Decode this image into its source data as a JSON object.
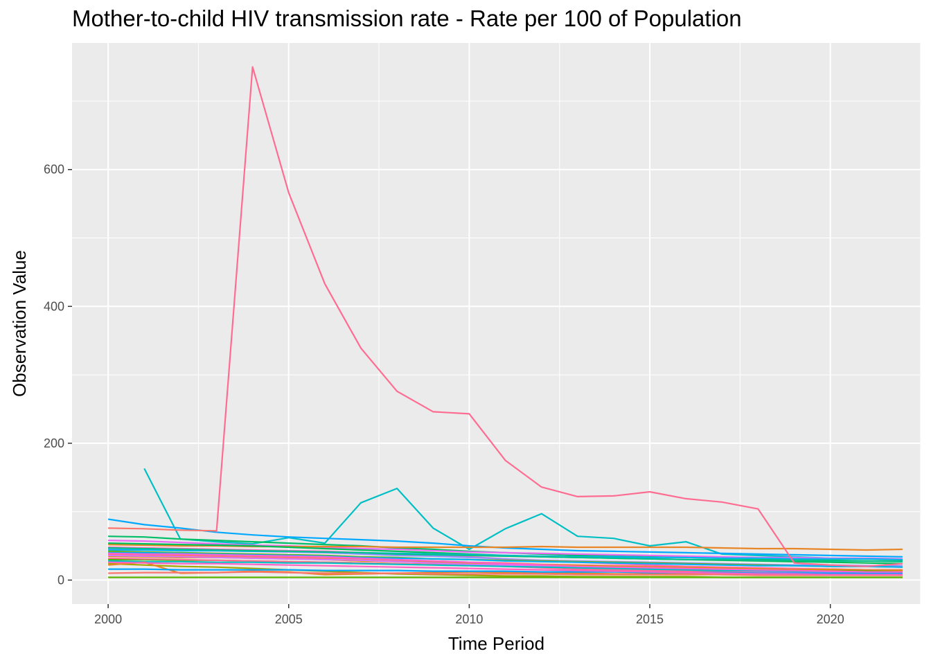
{
  "chart_data": {
    "type": "line",
    "title": "Mother-to-child HIV transmission rate - Rate per 100 of Population",
    "xlabel": "Time Period",
    "ylabel": "Observation Value",
    "xlim": [
      1999,
      2022.5
    ],
    "ylim": [
      -35,
      785
    ],
    "x_ticks": [
      2000,
      2005,
      2010,
      2015,
      2020
    ],
    "y_ticks": [
      0,
      200,
      400,
      600
    ],
    "grid": true,
    "legend": "none",
    "background": "#ebebeb",
    "years": [
      2000,
      2001,
      2002,
      2003,
      2004,
      2005,
      2006,
      2007,
      2008,
      2009,
      2010,
      2011,
      2012,
      2013,
      2014,
      2015,
      2016,
      2017,
      2018,
      2019,
      2020,
      2021,
      2022
    ],
    "series": [
      {
        "color": "#ff6c91",
        "values": [
          null,
          null,
          null,
          70,
          750,
          566,
          433,
          339,
          276,
          246,
          243,
          175,
          136,
          122,
          123,
          129,
          119,
          114,
          104,
          25,
          22,
          20,
          24
        ]
      },
      {
        "color": "#00bfc4",
        "values": [
          null,
          163,
          60,
          56,
          53,
          62,
          54,
          113,
          134,
          76,
          45,
          75,
          97,
          64,
          61,
          50,
          56,
          38,
          36,
          34,
          32,
          31,
          30
        ]
      },
      {
        "color": "#00a9ff",
        "values": [
          89,
          81,
          76,
          70,
          66,
          63,
          61,
          59,
          57,
          54,
          50,
          47,
          45,
          43,
          42,
          41,
          40,
          39,
          38,
          37,
          36,
          35,
          34
        ]
      },
      {
        "color": "#f8766d",
        "values": [
          76,
          75,
          73,
          72,
          null,
          null,
          null,
          null,
          null,
          null,
          null,
          null,
          null,
          null,
          null,
          null,
          null,
          null,
          null,
          null,
          null,
          null,
          null
        ]
      },
      {
        "color": "#00be67",
        "values": [
          64,
          63,
          60,
          58,
          56,
          54,
          52,
          50,
          47,
          45,
          42,
          40,
          38,
          36,
          35,
          34,
          33,
          32,
          31,
          30,
          29,
          28,
          28
        ]
      },
      {
        "color": "#e76bf3",
        "values": [
          58,
          57,
          55,
          53,
          51,
          50,
          48,
          46,
          45,
          43,
          41,
          40,
          39,
          38,
          37,
          36,
          35,
          34,
          33,
          33,
          32,
          32,
          31
        ]
      },
      {
        "color": "#e88526",
        "values": [
          52,
          51,
          50,
          50,
          49,
          49,
          49,
          49,
          48,
          48,
          48,
          48,
          49,
          48,
          48,
          48,
          48,
          47,
          46,
          46,
          45,
          44,
          45
        ]
      },
      {
        "color": "#00bd5c",
        "values": [
          54,
          53,
          52,
          51,
          50,
          48,
          46,
          44,
          42,
          40,
          38,
          36,
          34,
          33,
          32,
          31,
          30,
          29,
          28,
          27,
          26,
          25,
          24
        ]
      },
      {
        "color": "#ff62bc",
        "values": [
          48,
          47,
          46,
          45,
          44,
          43,
          42,
          40,
          38,
          36,
          34,
          31,
          28,
          26,
          24,
          22,
          20,
          19,
          18,
          17,
          16,
          15,
          14
        ]
      },
      {
        "color": "#9590ff",
        "values": [
          46,
          45,
          44,
          43,
          42,
          41,
          40,
          38,
          36,
          35,
          33,
          31,
          29,
          28,
          27,
          26,
          25,
          24,
          23,
          22,
          22,
          21,
          21
        ]
      },
      {
        "color": "#00b4ef",
        "values": [
          44,
          44,
          43,
          43,
          42,
          42,
          41,
          40,
          39,
          38,
          37,
          36,
          35,
          34,
          34,
          33,
          33,
          32,
          32,
          31,
          31,
          31,
          30
        ]
      },
      {
        "color": "#7cae00",
        "values": [
          42,
          41,
          40,
          39,
          38,
          37,
          36,
          34,
          33,
          31,
          30,
          29,
          28,
          27,
          26,
          25,
          24,
          23,
          22,
          21,
          20,
          20,
          19
        ]
      },
      {
        "color": "#00b0f6",
        "values": [
          40,
          40,
          39,
          38,
          37,
          36,
          35,
          33,
          32,
          31,
          30,
          28,
          27,
          26,
          25,
          24,
          23,
          22,
          21,
          21,
          20,
          20,
          19
        ]
      },
      {
        "color": "#f8766d",
        "values": [
          38,
          37,
          36,
          35,
          34,
          33,
          32,
          31,
          29,
          28,
          26,
          25,
          23,
          22,
          21,
          20,
          19,
          18,
          17,
          16,
          16,
          15,
          15
        ]
      },
      {
        "color": "#d89000",
        "values": [
          35,
          34,
          33,
          33,
          32,
          31,
          30,
          28,
          27,
          26,
          25,
          23,
          22,
          21,
          20,
          19,
          18,
          17,
          16,
          15,
          15,
          14,
          14
        ]
      },
      {
        "color": "#39b600",
        "values": [
          30,
          30,
          29,
          29,
          28,
          27,
          26,
          25,
          24,
          23,
          22,
          21,
          20,
          19,
          18,
          17,
          16,
          15,
          15,
          14,
          13,
          13,
          12
        ]
      },
      {
        "color": "#a3a500",
        "values": [
          24,
          22,
          20,
          19,
          17,
          15,
          13,
          11,
          9,
          8,
          7,
          6,
          6,
          5,
          5,
          5,
          5,
          4,
          4,
          4,
          4,
          4,
          4
        ]
      },
      {
        "color": "#ff6c91",
        "values": [
          32,
          31,
          30,
          29,
          28,
          27,
          26,
          25,
          24,
          23,
          22,
          20,
          18,
          16,
          15,
          14,
          13,
          12,
          11,
          10,
          10,
          9,
          9
        ]
      },
      {
        "color": "#dc71fa",
        "values": [
          36,
          35,
          34,
          33,
          32,
          31,
          30,
          29,
          27,
          25,
          23,
          22,
          20,
          18,
          17,
          16,
          15,
          14,
          13,
          12,
          11,
          10,
          10
        ]
      },
      {
        "color": "#00bfc4",
        "values": [
          28,
          27,
          27,
          26,
          26,
          25,
          25,
          24,
          23,
          22,
          21,
          20,
          19,
          18,
          17,
          16,
          15,
          14,
          14,
          13,
          13,
          12,
          12
        ]
      },
      {
        "color": "#e88526",
        "values": [
          22,
          26,
          10,
          11,
          13,
          12,
          8,
          9,
          10,
          11,
          12,
          11,
          10,
          10,
          9,
          9,
          9,
          8,
          8,
          8,
          8,
          8,
          8
        ]
      },
      {
        "color": "#5bb300",
        "values": [
          4,
          4,
          4,
          4,
          4,
          4,
          4,
          4,
          4,
          4,
          4,
          4,
          4,
          4,
          4,
          4,
          4,
          4,
          4,
          4,
          4,
          4,
          4
        ]
      },
      {
        "color": "#f8766d",
        "values": [
          10,
          11,
          11,
          11,
          12,
          11,
          10,
          10,
          10,
          9,
          9,
          9,
          9,
          8,
          8,
          8,
          8,
          8,
          7,
          7,
          7,
          7,
          7
        ]
      },
      {
        "color": "#00a5ff",
        "values": [
          16,
          16,
          15,
          15,
          15,
          15,
          14,
          14,
          14,
          13,
          13,
          13,
          12,
          12,
          12,
          11,
          11,
          11,
          10,
          10,
          10,
          10,
          10
        ]
      },
      {
        "color": "#fd61d1",
        "values": [
          39,
          38,
          38,
          37,
          36,
          35,
          34,
          32,
          30,
          28,
          26,
          24,
          22,
          20,
          19,
          18,
          17,
          16,
          15,
          14,
          13,
          12,
          12
        ]
      },
      {
        "color": "#ff61c3",
        "values": [
          26,
          25,
          24,
          24,
          23,
          22,
          21,
          20,
          19,
          18,
          17,
          16,
          15,
          14,
          13,
          12,
          11,
          10,
          9,
          9,
          8,
          8,
          8
        ]
      },
      {
        "color": "#00c08b",
        "values": [
          47,
          46,
          45,
          44,
          43,
          42,
          41,
          40,
          38,
          37,
          36,
          35,
          34,
          33,
          32,
          31,
          30,
          30,
          29,
          29,
          28,
          28,
          27
        ]
      }
    ]
  }
}
